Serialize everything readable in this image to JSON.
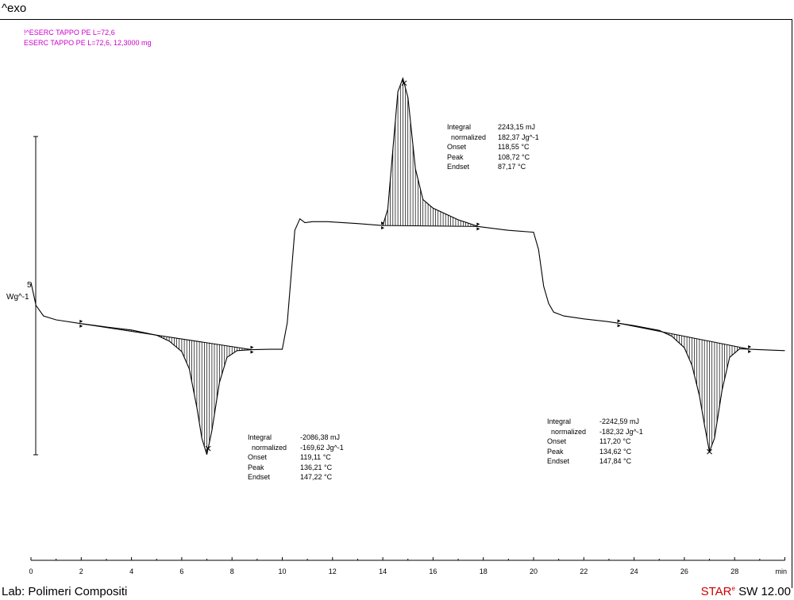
{
  "header": {
    "exo_label": "^exo"
  },
  "legend": [
    {
      "text": "!^ESERC TAPPO PE  L=72,6"
    },
    {
      "text": "ESERC TAPPO PE  L=72,6, 12,3000 mg"
    }
  ],
  "y_axis": {
    "tick_label": "5",
    "unit": "Wg^-1"
  },
  "footer": {
    "lab": "Lab: Polimeri Compositi",
    "software_star": "STAR",
    "software_sup": "e",
    "software_version": " SW 12.00"
  },
  "annotations": [
    {
      "rows": [
        {
          "k": "Integral",
          "v": "-2086,38 mJ"
        },
        {
          "k": "  normalized",
          "v": "-169,62 Jg^-1"
        },
        {
          "k": "Onset",
          "v": "119,11 °C"
        },
        {
          "k": "Peak",
          "v": "136,21 °C"
        },
        {
          "k": "Endset",
          "v": "147,22 °C"
        }
      ]
    },
    {
      "rows": [
        {
          "k": "Integral",
          "v": "2243,15 mJ"
        },
        {
          "k": "  normalized",
          "v": "182,37 Jg^-1"
        },
        {
          "k": "Onset",
          "v": "118,55 °C"
        },
        {
          "k": "Peak",
          "v": "108,72 °C"
        },
        {
          "k": "Endset",
          "v": "87,17 °C"
        }
      ]
    },
    {
      "rows": [
        {
          "k": "Integral",
          "v": "-2242,59 mJ"
        },
        {
          "k": "  normalized",
          "v": "-182,32 Jg^-1"
        },
        {
          "k": "Onset",
          "v": "117,20 °C"
        },
        {
          "k": "Peak",
          "v": "134,62 °C"
        },
        {
          "k": "Endset",
          "v": "147,84 °C"
        }
      ]
    }
  ],
  "chart_data": {
    "type": "line",
    "xlabel": "min",
    "xlim": [
      0,
      30
    ],
    "xticks": [
      "0",
      "2",
      "4",
      "6",
      "8",
      "10",
      "12",
      "14",
      "16",
      "18",
      "20",
      "22",
      "24",
      "26",
      "28"
    ],
    "line_color": "#000000",
    "grid": false,
    "series": [
      {
        "x": [
          0,
          0.2,
          0.5,
          1,
          2,
          3,
          4,
          5,
          5.5,
          6,
          6.3,
          6.6,
          6.8,
          7.0,
          7.2,
          7.5,
          7.8,
          8.2,
          8.8,
          9.5,
          10.0,
          10.2,
          10.5,
          10.7,
          10.9,
          11.2,
          11.8,
          13,
          14,
          14.2,
          14.4,
          14.6,
          14.8,
          15.0,
          15.3,
          15.6,
          16,
          17,
          17.8,
          19,
          20,
          20.2,
          20.4,
          20.6,
          20.8,
          21.2,
          22,
          23,
          24,
          25,
          25.5,
          26,
          26.3,
          26.6,
          26.8,
          27.0,
          27.2,
          27.5,
          27.8,
          28.2,
          29,
          30
        ],
        "y": [
          3.6,
          2.4,
          1.85,
          1.65,
          1.45,
          1.28,
          1.12,
          0.85,
          0.55,
          0.0,
          -0.9,
          -2.9,
          -4.5,
          -5.35,
          -4.1,
          -1.6,
          -0.3,
          0.05,
          0.1,
          0.12,
          0.12,
          1.5,
          6.3,
          6.9,
          6.7,
          6.75,
          6.75,
          6.65,
          6.55,
          7.4,
          10.5,
          13.5,
          14.2,
          13.2,
          9.5,
          7.9,
          7.45,
          6.85,
          6.5,
          6.3,
          6.2,
          5.3,
          3.4,
          2.5,
          2.05,
          1.85,
          1.7,
          1.55,
          1.35,
          1.1,
          0.8,
          0.2,
          -0.7,
          -2.3,
          -3.8,
          -5.2,
          -4.5,
          -2.0,
          -0.3,
          0.15,
          0.1,
          0.05
        ]
      }
    ],
    "peaks": [
      {
        "onset_x": 2.0,
        "end_x": 8.8,
        "peak_x": 7.05,
        "direction": "endo"
      },
      {
        "onset_x": 14.0,
        "end_x": 17.8,
        "peak_x": 14.85,
        "direction": "exo"
      },
      {
        "onset_x": 23.4,
        "end_x": 28.6,
        "peak_x": 27.0,
        "direction": "endo"
      }
    ]
  }
}
